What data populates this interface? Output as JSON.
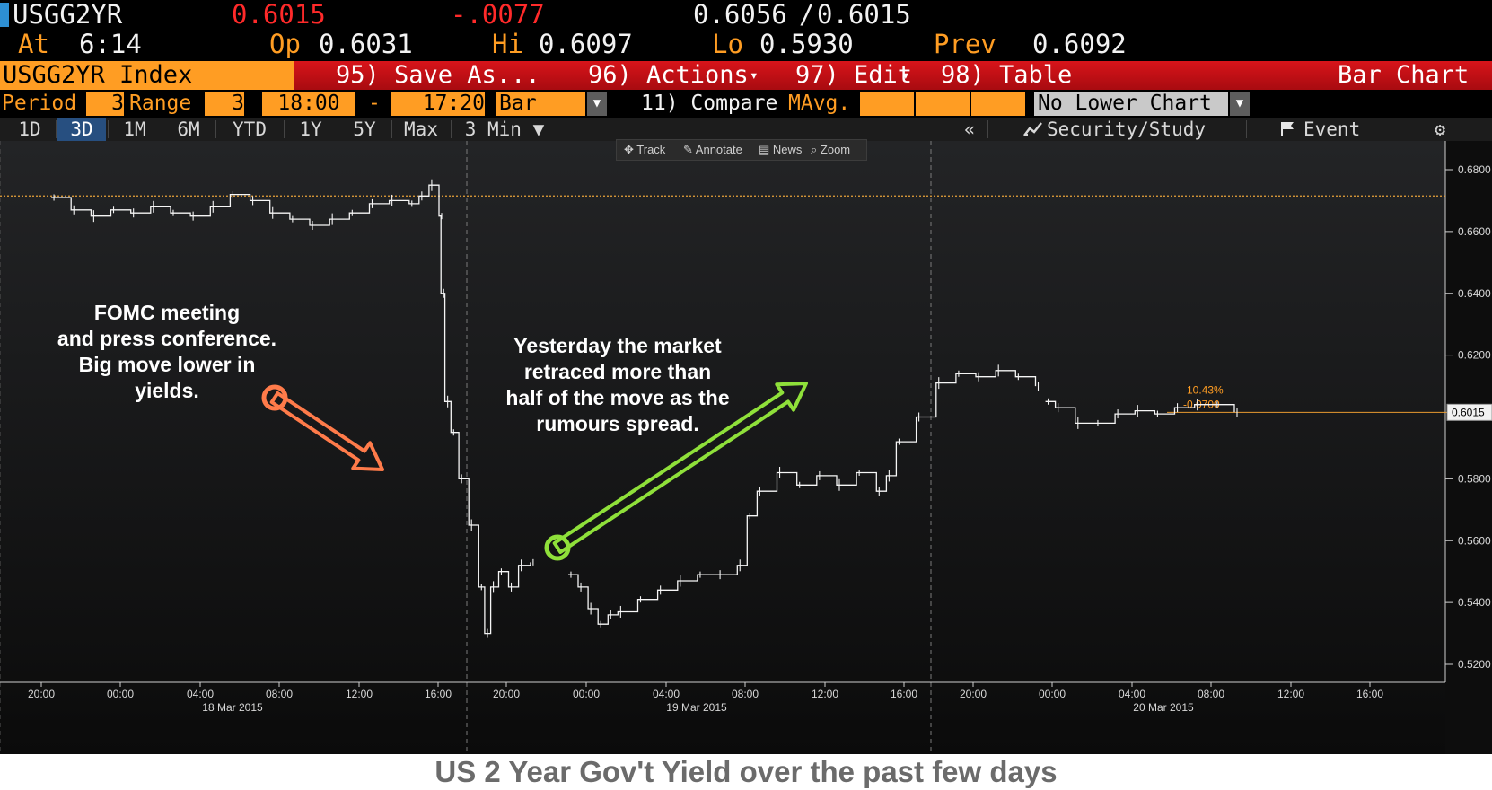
{
  "quote": {
    "ticker": "USGG2YR",
    "last": "0.6015",
    "change": "-.0077",
    "bid_ask": "0.6056",
    "slash": "/",
    "ask": "0.6015",
    "at_label": "At",
    "time": "6:14",
    "open_label": "Op",
    "open": "0.6031",
    "high_label": "Hi",
    "high": "0.6097",
    "low_label": "Lo",
    "low": "0.5930",
    "prev_label": "Prev",
    "prev": "0.6092"
  },
  "menubar": {
    "index_name": "USGG2YR Index",
    "save_as": "95) Save As...",
    "actions": "96) Actions",
    "edit": "97) Edit",
    "table": "98) Table",
    "chart_type": "Bar Chart"
  },
  "period_row": {
    "period_label": "Period",
    "period_value": "3",
    "range_label": "Range",
    "range_value": "3",
    "start_time": "18:00",
    "dash": "-",
    "end_time": "17:20",
    "bar_type": "Bar",
    "compare": "11) Compare",
    "mavg": "MAvg.",
    "lower_chart": "No Lower Chart"
  },
  "tabs": [
    {
      "label": "1D"
    },
    {
      "label": "3D"
    },
    {
      "label": "1M"
    },
    {
      "label": "6M"
    },
    {
      "label": "YTD"
    },
    {
      "label": "1Y"
    },
    {
      "label": "5Y"
    },
    {
      "label": "Max"
    },
    {
      "label": "3 Min ▼"
    }
  ],
  "right_tools": {
    "collapse": "«",
    "security_study": "Security/Study",
    "event": "Event"
  },
  "chart_toolbar": {
    "track": "Track",
    "annotate": "Annotate",
    "news": "News",
    "zoom": "Zoom"
  },
  "annotations": {
    "fomc": "FOMC meeting\nand press conference.\nBig move lower in\nyields.",
    "retrace": "Yesterday the market\nretraced more than\nhalf of the move as the\nrumours spread."
  },
  "caption": "US 2 Year Gov't Yield over the past few days",
  "colors": {
    "orange": "#ff9d23",
    "red_bar": "#d8141a",
    "active_tab": "#274f80",
    "arrow_orange": "#ff7b4a",
    "arrow_green": "#8fe03a",
    "ref_line": "#e8a23a"
  },
  "chart_data": {
    "type": "line",
    "title": "",
    "ylim": [
      0.515,
      0.685
    ],
    "yticks": [
      "0.6800",
      "0.6600",
      "0.6400",
      "0.6200",
      "0.6000",
      "0.5800",
      "0.5600",
      "0.5400",
      "0.5200"
    ],
    "yticks_values": [
      0.68,
      0.66,
      0.64,
      0.62,
      0.6,
      0.58,
      0.56,
      0.54,
      0.52
    ],
    "xticks": [
      "20:00",
      "00:00",
      "04:00",
      "08:00",
      "12:00",
      "16:00",
      "20:00",
      "00:00",
      "04:00",
      "08:00",
      "12:00",
      "16:00",
      "20:00",
      "00:00",
      "04:00",
      "08:00",
      "12:00",
      "16:00"
    ],
    "date_labels": [
      "18 Mar 2015",
      "19 Mar 2015",
      "20 Mar 2015"
    ],
    "last_value_label": "0.6015",
    "last_value": 0.6015,
    "change_pct_label": "-10.43%",
    "change_abs_label": "-0.0700",
    "prev_close_ref": 0.6715,
    "series": [
      {
        "segment": "day1",
        "points": [
          [
            0.5,
            0.671
          ],
          [
            1.5,
            0.667
          ],
          [
            2.5,
            0.665
          ],
          [
            3.5,
            0.667
          ],
          [
            4.5,
            0.666
          ],
          [
            5.5,
            0.668
          ],
          [
            6.5,
            0.666
          ],
          [
            7.5,
            0.665
          ],
          [
            8.5,
            0.668
          ],
          [
            9.5,
            0.672
          ],
          [
            10.5,
            0.67
          ],
          [
            11.5,
            0.666
          ],
          [
            12.5,
            0.664
          ],
          [
            13.5,
            0.662
          ],
          [
            14.5,
            0.664
          ],
          [
            15.5,
            0.666
          ],
          [
            16.5,
            0.669
          ],
          [
            17.5,
            0.67
          ],
          [
            18.5,
            0.669
          ],
          [
            19.0,
            0.6715
          ],
          [
            19.5,
            0.675
          ],
          [
            20.0,
            0.665
          ],
          [
            20.1,
            0.64
          ],
          [
            20.3,
            0.605
          ],
          [
            20.6,
            0.595
          ],
          [
            21.0,
            0.58
          ],
          [
            21.5,
            0.565
          ],
          [
            22.0,
            0.545
          ],
          [
            22.3,
            0.53
          ],
          [
            22.6,
            0.545
          ],
          [
            23.0,
            0.55
          ],
          [
            23.5,
            0.545
          ],
          [
            24.0,
            0.552
          ],
          [
            24.6,
            0.553
          ]
        ]
      },
      {
        "segment": "day2",
        "points": [
          [
            26.5,
            0.549
          ],
          [
            27.0,
            0.545
          ],
          [
            27.5,
            0.538
          ],
          [
            28.0,
            0.533
          ],
          [
            28.5,
            0.536
          ],
          [
            29.0,
            0.537
          ],
          [
            30.0,
            0.541
          ],
          [
            31.0,
            0.544
          ],
          [
            32.0,
            0.547
          ],
          [
            33.0,
            0.549
          ],
          [
            34.0,
            0.549
          ],
          [
            35.0,
            0.552
          ],
          [
            35.5,
            0.568
          ],
          [
            36.0,
            0.576
          ],
          [
            37.0,
            0.582
          ],
          [
            38.0,
            0.578
          ],
          [
            39.0,
            0.581
          ],
          [
            40.0,
            0.578
          ],
          [
            41.0,
            0.582
          ],
          [
            42.0,
            0.576
          ],
          [
            42.5,
            0.581
          ],
          [
            43.0,
            0.592
          ],
          [
            44.0,
            0.6
          ],
          [
            45.0,
            0.611
          ],
          [
            46.0,
            0.614
          ],
          [
            47.0,
            0.613
          ],
          [
            48.0,
            0.615
          ],
          [
            49.0,
            0.613
          ],
          [
            50.0,
            0.61
          ]
        ]
      },
      {
        "segment": "day3",
        "points": [
          [
            50.5,
            0.605
          ],
          [
            51.0,
            0.603
          ],
          [
            52.0,
            0.598
          ],
          [
            53.0,
            0.598
          ],
          [
            54.0,
            0.601
          ],
          [
            55.0,
            0.602
          ],
          [
            56.0,
            0.601
          ],
          [
            57.0,
            0.603
          ],
          [
            58.0,
            0.604
          ],
          [
            59.0,
            0.604
          ],
          [
            60.0,
            0.6015
          ]
        ]
      }
    ]
  }
}
